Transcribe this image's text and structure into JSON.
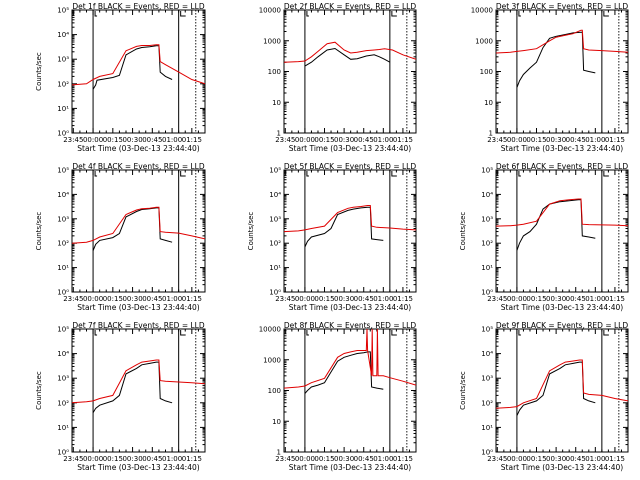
{
  "figure": {
    "background": "#ffffff",
    "colors": {
      "black": "#000000",
      "red": "#e00000",
      "axis": "#000000"
    }
  },
  "chart_data": [
    {
      "type": "line",
      "title": "Det 1f BLACK = Events, RED = LLD",
      "xlabel": "Start Time (03-Dec-13 23:44:40)",
      "ylabel": "Counts/sec",
      "scale": "log",
      "ylim": [
        1,
        100000
      ],
      "yticks": [
        "10⁰",
        "10¹",
        "10²",
        "10³",
        "10⁴",
        "10⁵"
      ],
      "xticks": [
        "23:45",
        "00:00",
        "00:15",
        "00:30",
        "00:45",
        "01:00",
        "01:15"
      ],
      "xrange_min": [
        -1,
        100
      ],
      "markers_min": [
        15,
        80,
        93
      ],
      "series": [
        {
          "name": "Events",
          "color": "black",
          "x": [
            15,
            17,
            18,
            30,
            35,
            40,
            48,
            52,
            58,
            63,
            65,
            66,
            70,
            75
          ],
          "y": [
            60,
            90,
            140,
            180,
            220,
            1500,
            2600,
            3000,
            3200,
            3500,
            3500,
            300,
            200,
            150
          ]
        },
        {
          "name": "LLD",
          "color": "red",
          "x": [
            -1,
            10,
            15,
            20,
            30,
            40,
            48,
            52,
            58,
            63,
            65,
            66,
            70,
            80,
            90,
            100
          ],
          "y": [
            90,
            100,
            150,
            200,
            260,
            2200,
            3300,
            3600,
            3600,
            3900,
            3900,
            800,
            600,
            300,
            150,
            100
          ]
        }
      ]
    },
    {
      "type": "line",
      "title": "Det 2f BLACK = Events, RED = LLD",
      "xlabel": "Start Time (03-Dec-13 23:44:40)",
      "ylabel": "",
      "scale": "log",
      "ylim": [
        1,
        10000
      ],
      "yticks": [
        "1",
        "10",
        "100",
        "1000",
        "10000"
      ],
      "xticks": [
        "23:45",
        "00:00",
        "00:15",
        "00:30",
        "00:45",
        "01:00",
        "01:15"
      ],
      "xrange_min": [
        -1,
        100
      ],
      "markers_min": [
        15,
        80,
        93
      ],
      "series": [
        {
          "name": "Events",
          "color": "black",
          "x": [
            15,
            20,
            25,
            32,
            38,
            45,
            50,
            55,
            62,
            68,
            72,
            76,
            80
          ],
          "y": [
            150,
            200,
            300,
            500,
            560,
            350,
            250,
            260,
            320,
            350,
            300,
            250,
            200
          ]
        },
        {
          "name": "LLD",
          "color": "red",
          "x": [
            -1,
            10,
            15,
            20,
            25,
            32,
            38,
            45,
            50,
            55,
            62,
            68,
            72,
            76,
            82,
            90,
            100
          ],
          "y": [
            200,
            210,
            220,
            300,
            450,
            800,
            900,
            500,
            400,
            420,
            480,
            500,
            520,
            550,
            500,
            350,
            250
          ]
        }
      ]
    },
    {
      "type": "line",
      "title": "Det 3f BLACK = Events, RED = LLD",
      "xlabel": "Start Time (03-Dec-13 23:44:40)",
      "ylabel": "",
      "scale": "log",
      "ylim": [
        1,
        10000
      ],
      "yticks": [
        "1",
        "10",
        "100",
        "1000",
        "10000"
      ],
      "xticks": [
        "23:45",
        "00:00",
        "00:15",
        "00:30",
        "00:45",
        "01:00",
        "01:15"
      ],
      "xrange_min": [
        -1,
        100
      ],
      "markers_min": [
        15,
        80,
        93
      ],
      "series": [
        {
          "name": "Events",
          "color": "black",
          "x": [
            15,
            17,
            20,
            25,
            30,
            35,
            40,
            45,
            52,
            58,
            64,
            65,
            66,
            70,
            75
          ],
          "y": [
            30,
            50,
            80,
            130,
            200,
            600,
            1200,
            1400,
            1600,
            1800,
            1900,
            1900,
            110,
            100,
            90
          ]
        },
        {
          "name": "LLD",
          "color": "red",
          "x": [
            -1,
            10,
            15,
            20,
            30,
            40,
            45,
            52,
            58,
            64,
            65,
            66,
            70,
            80,
            90,
            100
          ],
          "y": [
            400,
            420,
            450,
            480,
            550,
            1000,
            1300,
            1500,
            1700,
            2200,
            2200,
            550,
            500,
            480,
            450,
            420
          ]
        }
      ]
    },
    {
      "type": "line",
      "title": "Det 4f BLACK = Events, RED = LLD",
      "xlabel": "Start Time (03-Dec-13 23:44:40)",
      "ylabel": "Counts/sec",
      "scale": "log",
      "ylim": [
        1,
        100000
      ],
      "yticks": [
        "10⁰",
        "10¹",
        "10²",
        "10³",
        "10⁴",
        "10⁵"
      ],
      "xticks": [
        "23:45",
        "00:00",
        "00:15",
        "00:30",
        "00:45",
        "01:00",
        "01:15"
      ],
      "xrange_min": [
        -1,
        100
      ],
      "markers_min": [
        15,
        80,
        93
      ],
      "series": [
        {
          "name": "Events",
          "color": "black",
          "x": [
            15,
            17,
            20,
            30,
            35,
            40,
            48,
            52,
            58,
            63,
            65,
            66,
            70,
            75
          ],
          "y": [
            50,
            90,
            130,
            170,
            250,
            1200,
            2000,
            2400,
            2600,
            2800,
            2800,
            150,
            130,
            110
          ]
        },
        {
          "name": "LLD",
          "color": "red",
          "x": [
            -1,
            10,
            15,
            20,
            30,
            40,
            48,
            52,
            58,
            63,
            65,
            66,
            70,
            80,
            90,
            100
          ],
          "y": [
            100,
            110,
            130,
            180,
            250,
            1500,
            2300,
            2600,
            2700,
            3000,
            3000,
            300,
            280,
            260,
            200,
            150
          ]
        }
      ]
    },
    {
      "type": "line",
      "title": "Det 5f BLACK = Events, RED = LLD",
      "xlabel": "Start Time (03-Dec-13 23:44:40)",
      "ylabel": "Counts/sec",
      "scale": "log",
      "ylim": [
        1,
        100000
      ],
      "yticks": [
        "10⁰",
        "10¹",
        "10²",
        "10³",
        "10⁴",
        "10⁵"
      ],
      "xticks": [
        "23:45",
        "00:00",
        "00:15",
        "00:30",
        "00:45",
        "01:00",
        "01:15"
      ],
      "xrange_min": [
        -1,
        100
      ],
      "markers_min": [
        15,
        80,
        93
      ],
      "series": [
        {
          "name": "Events",
          "color": "black",
          "x": [
            15,
            17,
            20,
            30,
            35,
            40,
            48,
            52,
            58,
            63,
            65,
            66,
            70,
            75
          ],
          "y": [
            70,
            120,
            180,
            250,
            400,
            1500,
            2200,
            2500,
            2800,
            3000,
            3000,
            150,
            140,
            130
          ]
        },
        {
          "name": "LLD",
          "color": "red",
          "x": [
            -1,
            10,
            15,
            20,
            30,
            40,
            48,
            52,
            58,
            63,
            65,
            66,
            70,
            80,
            90,
            100
          ],
          "y": [
            300,
            320,
            350,
            400,
            500,
            1800,
            2700,
            3000,
            3200,
            3500,
            3500,
            500,
            450,
            420,
            380,
            350
          ]
        }
      ]
    },
    {
      "type": "line",
      "title": "Det 6f BLACK = Events, RED = LLD",
      "xlabel": "Start Time (03-Dec-13 23:44:40)",
      "ylabel": "Counts/sec",
      "scale": "log",
      "ylim": [
        1,
        100000
      ],
      "yticks": [
        "10⁰",
        "10¹",
        "10²",
        "10³",
        "10⁴",
        "10⁵"
      ],
      "xticks": [
        "23:45",
        "00:00",
        "00:15",
        "00:30",
        "00:45",
        "01:00",
        "01:15"
      ],
      "xrange_min": [
        -1,
        100
      ],
      "markers_min": [
        15,
        80,
        93
      ],
      "series": [
        {
          "name": "Events",
          "color": "black",
          "x": [
            15,
            17,
            20,
            25,
            30,
            35,
            40,
            48,
            55,
            62,
            64,
            65,
            70,
            75
          ],
          "y": [
            50,
            100,
            200,
            300,
            600,
            2500,
            4000,
            5000,
            5500,
            6000,
            6000,
            200,
            180,
            160
          ]
        },
        {
          "name": "LLD",
          "color": "red",
          "x": [
            -1,
            10,
            15,
            20,
            30,
            40,
            48,
            55,
            62,
            64,
            65,
            70,
            80,
            90,
            100
          ],
          "y": [
            500,
            520,
            550,
            600,
            800,
            4000,
            5500,
            6000,
            6500,
            6500,
            600,
            580,
            560,
            550,
            520
          ]
        }
      ]
    },
    {
      "type": "line",
      "title": "Det 7f BLACK = Events, RED = LLD",
      "xlabel": "Start Time (03-Dec-13 23:44:40)",
      "ylabel": "Counts/sec",
      "scale": "log",
      "ylim": [
        1,
        100000
      ],
      "yticks": [
        "10⁰",
        "10¹",
        "10²",
        "10³",
        "10⁴",
        "10⁵"
      ],
      "xticks": [
        "23:45",
        "00:00",
        "00:15",
        "00:30",
        "00:45",
        "01:00",
        "01:15"
      ],
      "xrange_min": [
        -1,
        100
      ],
      "markers_min": [
        15,
        80,
        93
      ],
      "series": [
        {
          "name": "Events",
          "color": "black",
          "x": [
            15,
            17,
            20,
            30,
            35,
            40,
            48,
            52,
            58,
            63,
            65,
            66,
            70,
            75
          ],
          "y": [
            40,
            60,
            80,
            120,
            200,
            1500,
            2500,
            3500,
            4000,
            4500,
            4500,
            150,
            120,
            100
          ]
        },
        {
          "name": "LLD",
          "color": "red",
          "x": [
            -1,
            10,
            15,
            20,
            30,
            40,
            48,
            52,
            58,
            63,
            65,
            66,
            70,
            80,
            90,
            100
          ],
          "y": [
            100,
            110,
            120,
            150,
            200,
            2000,
            3500,
            4500,
            5000,
            5500,
            5500,
            800,
            750,
            700,
            650,
            600
          ]
        }
      ]
    },
    {
      "type": "line",
      "title": "Det 8f BLACK = Events, RED = LLD",
      "xlabel": "Start Time (03-Dec-13 23:44:40)",
      "ylabel": "",
      "scale": "log",
      "ylim": [
        1,
        10000
      ],
      "yticks": [
        "1",
        "10",
        "100",
        "1000",
        "10000"
      ],
      "xticks": [
        "23:45",
        "00:00",
        "00:15",
        "00:30",
        "00:45",
        "01:00",
        "01:15"
      ],
      "xrange_min": [
        -1,
        100
      ],
      "markers_min": [
        15,
        80,
        93
      ],
      "series": [
        {
          "name": "Events",
          "color": "black",
          "x": [
            15,
            17,
            20,
            25,
            30,
            35,
            40,
            45,
            50,
            55,
            60,
            63,
            65,
            66,
            70,
            75
          ],
          "y": [
            80,
            100,
            130,
            150,
            180,
            400,
            900,
            1200,
            1400,
            1600,
            1700,
            1800,
            1800,
            130,
            120,
            110
          ]
        },
        {
          "name": "LLD",
          "color": "red",
          "x": [
            -1,
            10,
            15,
            20,
            30,
            40,
            45,
            50,
            55,
            60,
            62,
            62.5,
            63,
            66,
            66.5,
            67,
            70,
            70.5,
            71,
            75,
            80,
            90,
            100
          ],
          "y": [
            120,
            130,
            140,
            180,
            250,
            1200,
            1600,
            1800,
            2000,
            2000,
            2000,
            10000,
            2000,
            300,
            10000,
            300,
            300,
            10000,
            300,
            300,
            260,
            200,
            150
          ]
        }
      ]
    },
    {
      "type": "line",
      "title": "Det 9f BLACK = Events, RED = LLD",
      "xlabel": "Start Time (03-Dec-13 23:44:40)",
      "ylabel": "Counts/sec",
      "scale": "log",
      "ylim": [
        1,
        100000
      ],
      "yticks": [
        "10⁰",
        "10¹",
        "10²",
        "10³",
        "10⁴",
        "10⁵"
      ],
      "xticks": [
        "23:45",
        "00:00",
        "00:15",
        "00:30",
        "00:45",
        "01:00",
        "01:15"
      ],
      "xrange_min": [
        -1,
        100
      ],
      "markers_min": [
        15,
        80,
        93
      ],
      "series": [
        {
          "name": "Events",
          "color": "black",
          "x": [
            15,
            17,
            20,
            30,
            35,
            40,
            48,
            52,
            58,
            63,
            65,
            66,
            70,
            75
          ],
          "y": [
            30,
            50,
            80,
            120,
            200,
            1500,
            2500,
            3500,
            4000,
            4500,
            4500,
            150,
            120,
            100
          ]
        },
        {
          "name": "LLD",
          "color": "red",
          "x": [
            -1,
            10,
            15,
            20,
            30,
            40,
            48,
            52,
            58,
            63,
            65,
            66,
            70,
            80,
            90,
            100
          ],
          "y": [
            60,
            65,
            70,
            100,
            150,
            2000,
            3500,
            4500,
            5000,
            5500,
            5500,
            250,
            220,
            200,
            150,
            120
          ]
        }
      ]
    }
  ]
}
